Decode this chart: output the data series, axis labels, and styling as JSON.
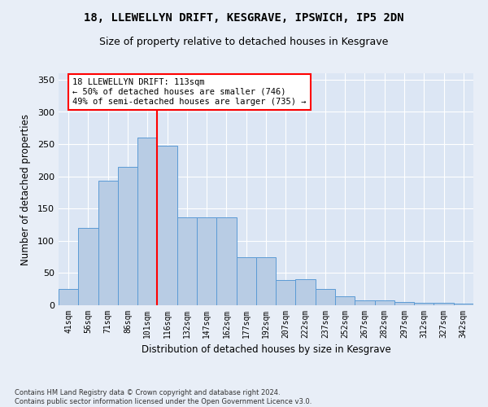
{
  "title": "18, LLEWELLYN DRIFT, KESGRAVE, IPSWICH, IP5 2DN",
  "subtitle": "Size of property relative to detached houses in Kesgrave",
  "xlabel": "Distribution of detached houses by size in Kesgrave",
  "ylabel": "Number of detached properties",
  "categories": [
    "41sqm",
    "56sqm",
    "71sqm",
    "86sqm",
    "101sqm",
    "116sqm",
    "132sqm",
    "147sqm",
    "162sqm",
    "177sqm",
    "192sqm",
    "207sqm",
    "222sqm",
    "237sqm",
    "252sqm",
    "267sqm",
    "282sqm",
    "297sqm",
    "312sqm",
    "327sqm",
    "342sqm"
  ],
  "values": [
    25,
    120,
    193,
    215,
    260,
    247,
    137,
    137,
    137,
    74,
    74,
    39,
    40,
    25,
    14,
    8,
    7,
    5,
    4,
    4,
    3
  ],
  "bar_color": "#b8cce4",
  "bar_edge_color": "#5b9bd5",
  "vline_x": 5,
  "vline_color": "red",
  "annotation_text": "18 LLEWELLYN DRIFT: 113sqm\n← 50% of detached houses are smaller (746)\n49% of semi-detached houses are larger (735) →",
  "annotation_box_color": "white",
  "annotation_box_edge": "red",
  "footer": "Contains HM Land Registry data © Crown copyright and database right 2024.\nContains public sector information licensed under the Open Government Licence v3.0.",
  "ylim": [
    0,
    360
  ],
  "background_color": "#e8eef7",
  "plot_background": "#dce6f4",
  "title_fontsize": 10,
  "subtitle_fontsize": 9
}
